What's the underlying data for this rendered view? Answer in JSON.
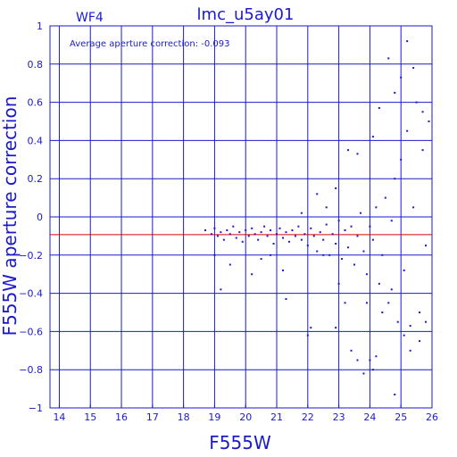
{
  "chart_data": {
    "type": "scatter",
    "title": "lmc_u5ay01",
    "chip_label": "WF4",
    "xlabel": "F555W",
    "ylabel": "F555W aperture correction",
    "annotation": "Average aperture correction: -0.093",
    "xlim": [
      13.7,
      26.0
    ],
    "ylim": [
      -1.0,
      1.0
    ],
    "x_ticks": [
      14,
      15,
      16,
      17,
      18,
      19,
      20,
      21,
      22,
      23,
      24,
      25,
      26
    ],
    "y_ticks": [
      -1,
      -0.8,
      -0.6,
      -0.4,
      -0.2,
      0,
      0.2,
      0.4,
      0.6,
      0.8,
      1
    ],
    "y_tick_labels": [
      "−1",
      "−0.8",
      "−0.6",
      "−0.4",
      "−0.2",
      "0",
      "0.2",
      "0.4",
      "0.6",
      "0.8",
      "1"
    ],
    "grid": true,
    "reference_line": {
      "y": -0.093,
      "color": "#dd0000"
    },
    "colors": {
      "axes": "#1a1acc",
      "points": "#1a1acc",
      "line": "#dd0000"
    },
    "points": [
      [
        18.7,
        -0.07
      ],
      [
        18.9,
        -0.09
      ],
      [
        19.0,
        -0.06
      ],
      [
        19.1,
        -0.1
      ],
      [
        19.2,
        -0.08
      ],
      [
        19.3,
        -0.12
      ],
      [
        19.4,
        -0.07
      ],
      [
        19.5,
        -0.09
      ],
      [
        19.6,
        -0.05
      ],
      [
        19.7,
        -0.11
      ],
      [
        19.8,
        -0.08
      ],
      [
        19.9,
        -0.13
      ],
      [
        20.0,
        -0.07
      ],
      [
        20.1,
        -0.1
      ],
      [
        20.2,
        -0.06
      ],
      [
        20.3,
        -0.09
      ],
      [
        20.4,
        -0.12
      ],
      [
        20.5,
        -0.08
      ],
      [
        20.6,
        -0.05
      ],
      [
        20.7,
        -0.1
      ],
      [
        20.8,
        -0.07
      ],
      [
        20.9,
        -0.14
      ],
      [
        21.0,
        -0.09
      ],
      [
        21.1,
        -0.06
      ],
      [
        21.2,
        -0.11
      ],
      [
        21.3,
        -0.08
      ],
      [
        21.4,
        -0.13
      ],
      [
        21.5,
        -0.07
      ],
      [
        21.6,
        -0.1
      ],
      [
        21.7,
        -0.05
      ],
      [
        21.8,
        -0.12
      ],
      [
        21.9,
        -0.09
      ],
      [
        22.0,
        -0.15
      ],
      [
        22.1,
        -0.06
      ],
      [
        22.2,
        -0.1
      ],
      [
        22.3,
        -0.18
      ],
      [
        22.4,
        -0.08
      ],
      [
        22.5,
        -0.12
      ],
      [
        22.6,
        -0.04
      ],
      [
        22.7,
        -0.2
      ],
      [
        22.8,
        -0.09
      ],
      [
        22.9,
        -0.14
      ],
      [
        23.0,
        -0.02
      ],
      [
        23.1,
        -0.22
      ],
      [
        23.2,
        -0.07
      ],
      [
        23.3,
        -0.16
      ],
      [
        23.4,
        -0.05
      ],
      [
        23.5,
        -0.25
      ],
      [
        23.6,
        -0.1
      ],
      [
        23.7,
        0.02
      ],
      [
        23.8,
        -0.18
      ],
      [
        23.9,
        -0.3
      ],
      [
        24.0,
        -0.05
      ],
      [
        24.1,
        -0.12
      ],
      [
        24.2,
        0.05
      ],
      [
        24.3,
        -0.35
      ],
      [
        24.4,
        -0.2
      ],
      [
        24.5,
        0.1
      ],
      [
        24.6,
        -0.45
      ],
      [
        24.7,
        -0.02
      ],
      [
        24.8,
        0.2
      ],
      [
        24.9,
        -0.55
      ],
      [
        25.0,
        0.3
      ],
      [
        25.1,
        -0.28
      ],
      [
        25.2,
        0.45
      ],
      [
        25.3,
        -0.7
      ],
      [
        25.4,
        0.05
      ],
      [
        25.5,
        0.6
      ],
      [
        25.6,
        -0.5
      ],
      [
        25.7,
        0.35
      ],
      [
        25.8,
        -0.15
      ],
      [
        25.9,
        0.5
      ],
      [
        19.5,
        -0.25
      ],
      [
        20.2,
        -0.3
      ],
      [
        20.8,
        -0.2
      ],
      [
        21.2,
        -0.28
      ],
      [
        21.3,
        -0.43
      ],
      [
        22.0,
        -0.62
      ],
      [
        22.1,
        -0.58
      ],
      [
        22.9,
        -0.58
      ],
      [
        23.4,
        -0.7
      ],
      [
        23.6,
        -0.75
      ],
      [
        23.8,
        -0.82
      ],
      [
        24.0,
        -0.75
      ],
      [
        24.1,
        -0.8
      ],
      [
        24.2,
        -0.73
      ],
      [
        24.8,
        -0.93
      ],
      [
        25.3,
        -0.57
      ],
      [
        25.6,
        -0.65
      ],
      [
        25.8,
        -0.55
      ],
      [
        21.8,
        0.02
      ],
      [
        22.3,
        0.12
      ],
      [
        22.6,
        0.05
      ],
      [
        22.9,
        0.15
      ],
      [
        23.3,
        0.35
      ],
      [
        23.6,
        0.33
      ],
      [
        24.1,
        0.42
      ],
      [
        24.3,
        0.57
      ],
      [
        24.6,
        0.83
      ],
      [
        24.8,
        0.65
      ],
      [
        25.0,
        0.73
      ],
      [
        25.2,
        0.92
      ],
      [
        25.4,
        0.78
      ],
      [
        25.7,
        0.55
      ],
      [
        19.0,
        -0.2
      ],
      [
        19.2,
        -0.38
      ],
      [
        20.5,
        -0.22
      ],
      [
        22.5,
        -0.2
      ],
      [
        23.0,
        -0.35
      ],
      [
        23.2,
        -0.45
      ],
      [
        23.9,
        -0.45
      ],
      [
        24.4,
        -0.5
      ],
      [
        24.7,
        -0.38
      ],
      [
        25.1,
        -0.62
      ]
    ]
  }
}
